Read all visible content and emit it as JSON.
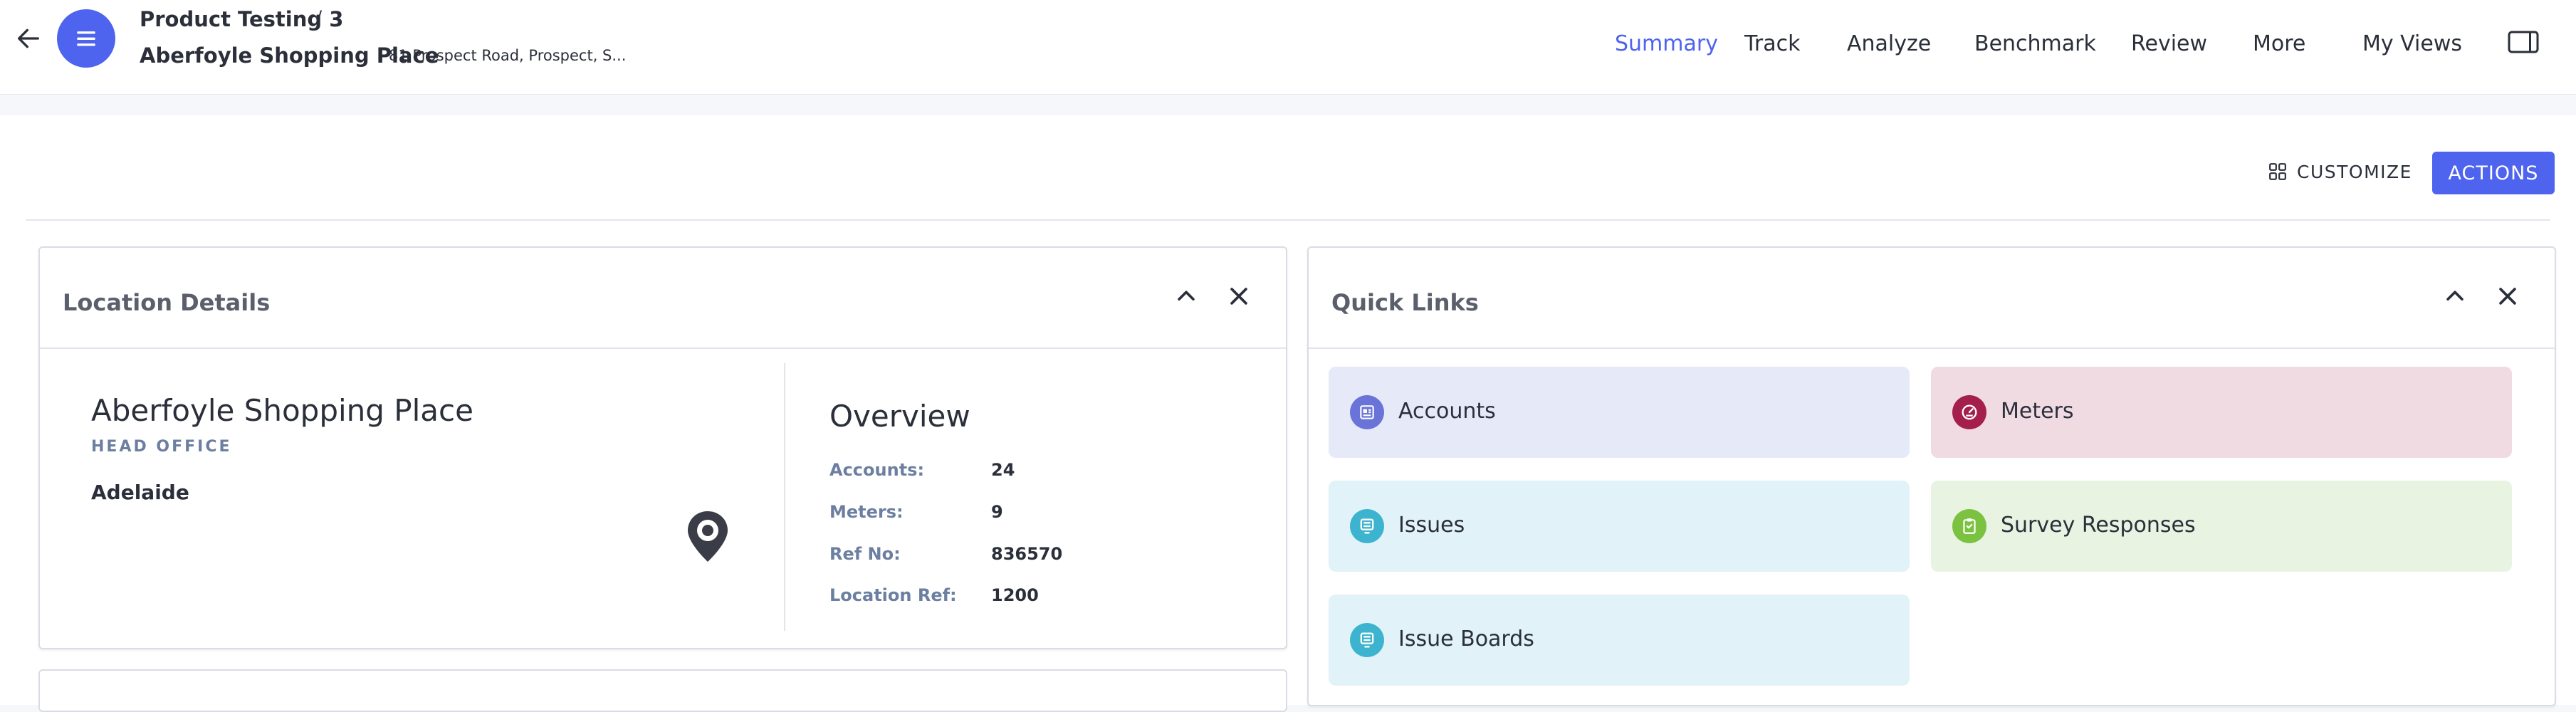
{
  "header": {
    "breadcrumb_parent": "Product Testing 3",
    "breadcrumb_separator": "/",
    "location_name": "Aberfoyle Shopping Place",
    "location_address": "81 Prospect Road, Prospect, S...",
    "nav": [
      {
        "label": "Summary",
        "active": true
      },
      {
        "label": "Track"
      },
      {
        "label": "Analyze"
      },
      {
        "label": "Benchmark"
      },
      {
        "label": "Review"
      },
      {
        "label": "More"
      },
      {
        "label": "My Views"
      }
    ],
    "accent_color": "#4e63ee"
  },
  "toolbar": {
    "customize_label": "CUSTOMIZE",
    "actions_label": "ACTIONS"
  },
  "location_card": {
    "title": "Location Details",
    "name": "Aberfoyle Shopping Place",
    "type": "HEAD OFFICE",
    "city": "Adelaide",
    "overview_title": "Overview",
    "overview": [
      {
        "label": "Accounts:",
        "value": "24"
      },
      {
        "label": "Meters:",
        "value": "9"
      },
      {
        "label": "Ref No:",
        "value": "836570"
      },
      {
        "label": "Location Ref:",
        "value": "1200"
      }
    ]
  },
  "quick_links": {
    "title": "Quick Links",
    "items": [
      {
        "label": "Accounts",
        "icon": "accounts-icon",
        "bg": "#e6e9f8",
        "icon_color": "#6a74d8"
      },
      {
        "label": "Meters",
        "icon": "gauge-icon",
        "bg": "#f0dbe3",
        "icon_color": "#a51f4c"
      },
      {
        "label": "Issues",
        "icon": "issues-icon",
        "bg": "#e1f2f8",
        "icon_color": "#3db4cf"
      },
      {
        "label": "Survey Responses",
        "icon": "clipboard-check-icon",
        "bg": "#e8f3e2",
        "icon_color": "#7cc241"
      },
      {
        "label": "Issue Boards",
        "icon": "issues-icon",
        "bg": "#e1f2f8",
        "icon_color": "#3db4cf"
      }
    ]
  }
}
